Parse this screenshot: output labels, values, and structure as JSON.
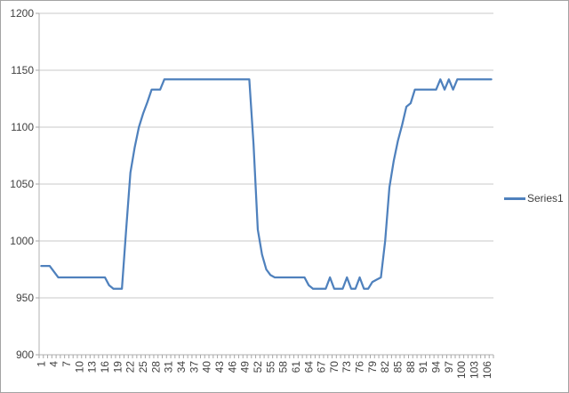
{
  "chart_data": {
    "type": "line",
    "title": "",
    "xlabel": "",
    "ylabel": "",
    "ylim": [
      900,
      1200
    ],
    "y_tick_interval": 50,
    "y_tick_labels": [
      "900",
      "950",
      "1000",
      "1050",
      "1100",
      "1150",
      "1200"
    ],
    "x_tick_labels": [
      "1",
      "4",
      "7",
      "10",
      "13",
      "16",
      "19",
      "22",
      "25",
      "28",
      "31",
      "34",
      "37",
      "40",
      "43",
      "46",
      "49",
      "52",
      "55",
      "58",
      "61",
      "64",
      "67",
      "70",
      "73",
      "76",
      "79",
      "82",
      "85",
      "88",
      "91",
      "94",
      "97",
      "100",
      "103",
      "106"
    ],
    "x_label_interval": 3,
    "x_labels_rotated_degrees": -90,
    "grid": "horizontal",
    "legend_position": "right",
    "series": [
      {
        "name": "Series1",
        "color": "#4F81BD",
        "values": [
          978,
          978,
          978,
          973,
          968,
          968,
          968,
          968,
          968,
          968,
          968,
          968,
          968,
          968,
          968,
          968,
          961,
          958,
          958,
          958,
          1010,
          1060,
          1082,
          1100,
          1112,
          1122,
          1133,
          1133,
          1133,
          1142,
          1142,
          1142,
          1142,
          1142,
          1142,
          1142,
          1142,
          1142,
          1142,
          1142,
          1142,
          1142,
          1142,
          1142,
          1142,
          1142,
          1142,
          1142,
          1142,
          1142,
          1085,
          1010,
          988,
          975,
          970,
          968,
          968,
          968,
          968,
          968,
          968,
          968,
          968,
          961,
          958,
          958,
          958,
          958,
          968,
          958,
          958,
          958,
          968,
          958,
          958,
          968,
          958,
          958,
          964,
          966,
          968,
          1000,
          1047,
          1070,
          1088,
          1102,
          1118,
          1121,
          1133,
          1133,
          1133,
          1133,
          1133,
          1133,
          1142,
          1133,
          1142,
          1133,
          1142,
          1142,
          1142,
          1142,
          1142,
          1142,
          1142,
          1142,
          1142
        ]
      }
    ]
  },
  "colors": {
    "gridline": "#c9c9c9",
    "axis": "#b2b2b2",
    "tick": "#a6a6a6",
    "label_text": "#3f3f3f",
    "frame_border": "#a3a3a3",
    "background": "#ffffff"
  }
}
